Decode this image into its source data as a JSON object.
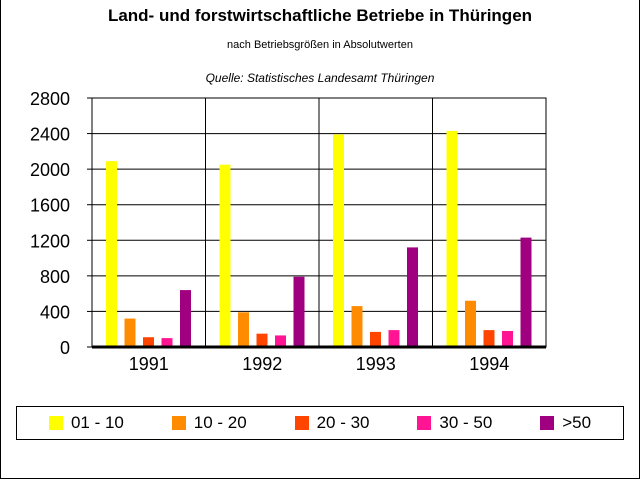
{
  "title": "Land- und forstwirtschaftliche Betriebe in Thüringen",
  "subtitle": "nach Betriebsgrößen in Absolutwerten",
  "source": "Quelle: Statistisches Landesamt Thüringen",
  "chart_data": {
    "type": "bar",
    "categories": [
      "1991",
      "1992",
      "1993",
      "1994"
    ],
    "series": [
      {
        "name": "01 - 10",
        "color": "#ffff00",
        "values": [
          2090,
          2050,
          2390,
          2430
        ]
      },
      {
        "name": "10 - 20",
        "color": "#ff8c00",
        "values": [
          320,
          390,
          460,
          520
        ]
      },
      {
        "name": "20 - 30",
        "color": "#ff4500",
        "values": [
          110,
          150,
          170,
          190
        ]
      },
      {
        "name": "30 - 50",
        "color": "#ff1493",
        "values": [
          100,
          130,
          190,
          180
        ]
      },
      {
        "name": ">50",
        "color": "#a0007f",
        "values": [
          640,
          790,
          1120,
          1230
        ]
      }
    ],
    "y_ticks": [
      "0",
      "400",
      "800",
      "1200",
      "1600",
      "2000",
      "2400",
      "2800"
    ],
    "ylim": [
      0,
      2800
    ],
    "grid": true,
    "legend_position": "bottom"
  }
}
